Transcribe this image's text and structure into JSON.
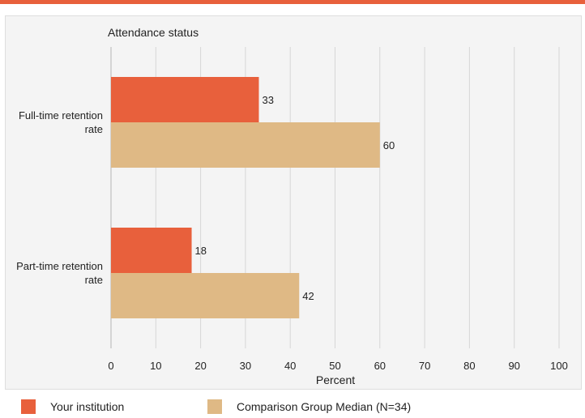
{
  "colors": {
    "accent": "#e8603c",
    "comparison": "#dfb985",
    "grid": "#d6d6d6",
    "panel": "#f4f4f4"
  },
  "chart_data": {
    "type": "bar",
    "orientation": "horizontal",
    "title": "Attendance status",
    "xlabel": "Percent",
    "xlim": [
      0,
      100
    ],
    "xticks": [
      "0",
      "10",
      "20",
      "30",
      "40",
      "50",
      "60",
      "70",
      "80",
      "90",
      "100"
    ],
    "grid": true,
    "legend_position": "bottom",
    "categories": [
      "Full-time retention rate",
      "Part-time retention rate"
    ],
    "category_lines": [
      [
        "Full-time retention",
        "rate"
      ],
      [
        "Part-time retention",
        "rate"
      ]
    ],
    "series": [
      {
        "name": "Your institution",
        "color": "#e8603c",
        "values": [
          33,
          18
        ]
      },
      {
        "name": "Comparison Group Median (N=34)",
        "color": "#dfb985",
        "values": [
          60,
          42
        ]
      }
    ]
  }
}
